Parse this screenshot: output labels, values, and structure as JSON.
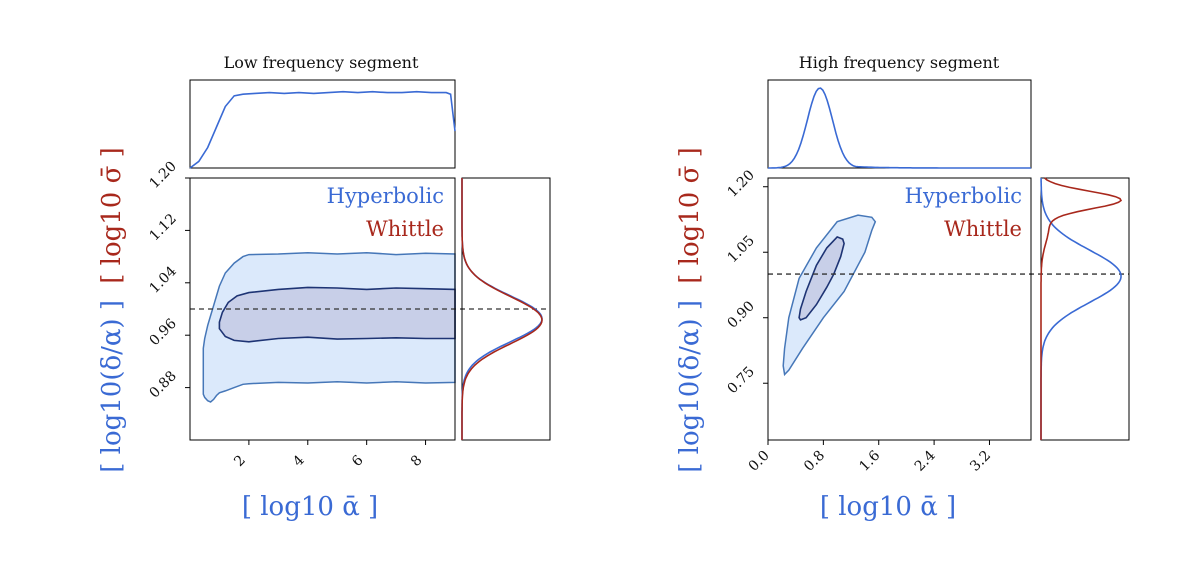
{
  "colors": {
    "hyperbolic": "#3a6ad4",
    "whittle": "#a8281c",
    "outer_fill": "#dbe9fb",
    "inner_fill": "#c8cfe8",
    "outer_edge": "#4677b8",
    "inner_edge": "#1e3474",
    "reference_line": "#333333",
    "frame": "#000000"
  },
  "legend": {
    "hyperbolic": "Hyperbolic",
    "whittle": "Whittle"
  },
  "axis_labels": {
    "x": "[ log10 ᾱ ]",
    "y_blue": "[ log10(δ/α) ]",
    "y_red": "[ log10 σ̄ ]"
  },
  "chart_data": [
    {
      "type": "contour",
      "title": "Low frequency segment",
      "xlabel": "[ log10 ᾱ ]",
      "ylabel": "[ log10(δ/α) ] [ log10 σ̄ ]",
      "xlim": [
        0,
        9
      ],
      "ylim": [
        0.8,
        1.2
      ],
      "xticks": [
        2,
        4,
        6,
        8
      ],
      "yticks": [
        0.88,
        0.96,
        1.04,
        1.12,
        1.2
      ],
      "xtick_labels": [
        "2",
        "4",
        "6",
        "8"
      ],
      "ytick_labels": [
        "0.88",
        "0.96",
        "1.04",
        "1.12",
        "1.20"
      ],
      "reference_y": 1.0,
      "contours": {
        "outer": {
          "x": [
            0.45,
            0.5,
            0.6,
            0.7,
            0.8,
            0.9,
            1.0,
            1.2,
            1.5,
            1.8,
            2.0,
            3.0,
            4.0,
            5.0,
            6.0,
            7.0,
            8.0,
            9.0,
            9.0,
            8.0,
            7.0,
            6.0,
            5.0,
            4.0,
            3.0,
            2.0,
            1.8,
            1.5,
            1.2,
            1.0,
            0.9,
            0.8,
            0.7,
            0.6,
            0.5,
            0.45
          ],
          "y": [
            0.87,
            0.865,
            0.86,
            0.858,
            0.862,
            0.868,
            0.872,
            0.875,
            0.88,
            0.885,
            0.886,
            0.888,
            0.887,
            0.889,
            0.887,
            0.889,
            0.887,
            0.888,
            1.084,
            1.085,
            1.083,
            1.086,
            1.084,
            1.086,
            1.084,
            1.083,
            1.08,
            1.07,
            1.055,
            1.035,
            1.02,
            1.005,
            0.99,
            0.975,
            0.955,
            0.94
          ]
        },
        "inner": {
          "x": [
            1.0,
            1.2,
            1.5,
            2.0,
            3.0,
            4.0,
            5.0,
            6.0,
            7.0,
            8.0,
            9.0,
            9.0,
            8.0,
            7.0,
            6.0,
            5.0,
            4.0,
            3.0,
            2.0,
            1.6,
            1.3,
            1.1,
            1.0
          ],
          "y": [
            0.97,
            0.958,
            0.952,
            0.95,
            0.955,
            0.957,
            0.954,
            0.955,
            0.956,
            0.955,
            0.955,
            1.03,
            1.031,
            1.032,
            1.03,
            1.032,
            1.033,
            1.03,
            1.025,
            1.02,
            1.01,
            0.995,
            0.98
          ]
        }
      },
      "marginal_x": {
        "series": [
          {
            "name": "Hyperbolic",
            "x": [
              0,
              0.3,
              0.6,
              0.9,
              1.2,
              1.5,
              1.8,
              2.2,
              2.7,
              3.2,
              3.7,
              4.2,
              4.7,
              5.2,
              5.7,
              6.2,
              6.7,
              7.2,
              7.7,
              8.2,
              8.7,
              8.85,
              9.0
            ],
            "density": [
              0.0,
              0.08,
              0.25,
              0.5,
              0.75,
              0.88,
              0.9,
              0.91,
              0.92,
              0.91,
              0.92,
              0.91,
              0.92,
              0.93,
              0.92,
              0.93,
              0.92,
              0.92,
              0.93,
              0.92,
              0.92,
              0.9,
              0.45
            ]
          }
        ]
      },
      "marginal_y": {
        "series": [
          {
            "name": "Hyperbolic",
            "mean": 0.985,
            "sd": 0.035
          },
          {
            "name": "Whittle",
            "mean": 0.983,
            "sd": 0.036
          }
        ]
      }
    },
    {
      "type": "contour",
      "title": "High frequency segment",
      "xlabel": "[ log10 ᾱ ]",
      "ylabel": "[ log10(δ/α) ] [ log10 σ̄ ]",
      "xlim": [
        0,
        3.8
      ],
      "ylim": [
        0.62,
        1.22
      ],
      "xticks": [
        0.0,
        0.8,
        1.6,
        2.4,
        3.2
      ],
      "yticks": [
        0.75,
        0.9,
        1.05,
        1.2
      ],
      "xtick_labels": [
        "0.0",
        "0.8",
        "1.6",
        "2.4",
        "3.2"
      ],
      "ytick_labels": [
        "0.75",
        "0.90",
        "1.05",
        "1.20"
      ],
      "reference_y": 1.0,
      "contours": {
        "outer": {
          "x": [
            0.24,
            0.3,
            0.5,
            0.8,
            1.1,
            1.4,
            1.5,
            1.55,
            1.5,
            1.3,
            1.0,
            0.7,
            0.45,
            0.3,
            0.24,
            0.22
          ],
          "y": [
            0.77,
            0.78,
            0.83,
            0.9,
            0.96,
            1.05,
            1.1,
            1.12,
            1.13,
            1.135,
            1.12,
            1.06,
            0.99,
            0.9,
            0.83,
            0.79
          ]
        },
        "inner": {
          "x": [
            0.47,
            0.55,
            0.7,
            0.85,
            0.95,
            1.05,
            1.1,
            1.08,
            1.0,
            0.85,
            0.7,
            0.55,
            0.47,
            0.45
          ],
          "y": [
            0.895,
            0.9,
            0.93,
            0.97,
            1.0,
            1.04,
            1.07,
            1.08,
            1.085,
            1.06,
            1.02,
            0.96,
            0.92,
            0.9
          ]
        }
      },
      "marginal_x": {
        "series": [
          {
            "name": "Hyperbolic",
            "mean": 0.75,
            "sd": 0.18,
            "tail": true
          }
        ]
      },
      "marginal_y": {
        "series": [
          {
            "name": "Hyperbolic",
            "mean": 0.995,
            "sd": 0.06
          },
          {
            "name": "Whittle",
            "mean": 1.17,
            "sd": 0.02,
            "secondary": {
              "mean": 1.11,
              "weight": 0.1,
              "sd": 0.04
            }
          }
        ]
      }
    }
  ]
}
